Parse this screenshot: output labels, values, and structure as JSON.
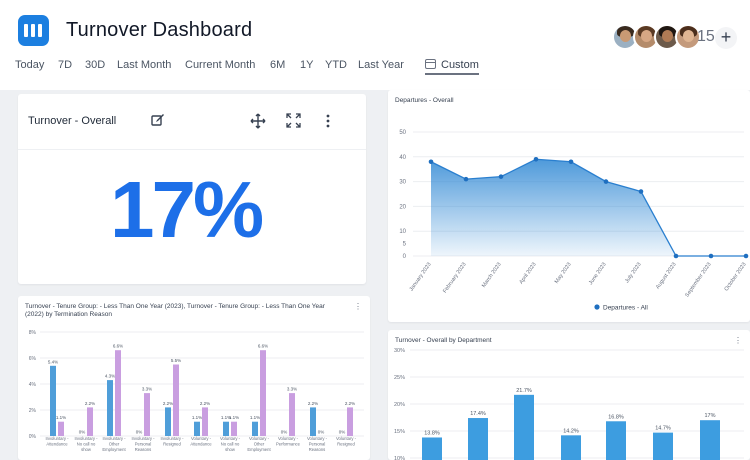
{
  "header": {
    "title": "Turnover Dashboard",
    "extra_count": "15",
    "add_label": "+",
    "logo_color": "#1c7fe0"
  },
  "tabs": [
    {
      "label": "Today"
    },
    {
      "label": "7D"
    },
    {
      "label": "30D"
    },
    {
      "label": "Last Month"
    },
    {
      "label": "Current Month"
    },
    {
      "label": "6M"
    },
    {
      "label": "1Y"
    },
    {
      "label": "YTD"
    },
    {
      "label": "Last Year"
    },
    {
      "label": "Custom",
      "active": true
    }
  ],
  "kpi": {
    "title": "Turnover - Overall",
    "value": "17%",
    "value_color": "#1d6fe8",
    "icons": [
      "edit-icon",
      "move-icon",
      "expand-icon",
      "more-vertical-icon"
    ]
  },
  "departures": {
    "title": "Departures - Overall",
    "chart_data": {
      "type": "area",
      "categories": [
        "January 2023",
        "February 2023",
        "March 2023",
        "April 2023",
        "May 2023",
        "June 2023",
        "July 2023",
        "August 2023",
        "September 2023",
        "October 2023"
      ],
      "series": [
        {
          "name": "Departures - All",
          "values": [
            38,
            31,
            32,
            39,
            38,
            30,
            26,
            0,
            0,
            0
          ]
        }
      ],
      "ylim": [
        0,
        50
      ],
      "yticks": [
        0,
        5,
        10,
        20,
        30,
        40,
        50
      ],
      "color": "#2f88d4",
      "grid": true,
      "legend": "bottom"
    }
  },
  "by_department": {
    "title": "Turnover - Overall by Department",
    "chart_data": {
      "type": "bar",
      "values": [
        13.8,
        17.4,
        21.7,
        14.2,
        16.8,
        14.7,
        17
      ],
      "labels": [
        "13.8%",
        "17.4%",
        "21.7%",
        "14.2%",
        "16.8%",
        "14.7%",
        "17%"
      ],
      "yticks": [
        "10%",
        "15%",
        "20%",
        "25%",
        "30%"
      ],
      "ylim": [
        0,
        30
      ],
      "color": "#3d9de0",
      "grid": true
    }
  },
  "tenure": {
    "title": "Turnover - Tenure Group: - Less Than One Year (2023), Turnover - Tenure Group: - Less Than One Year (2022) by Termination Reason",
    "chart_data": {
      "type": "bar",
      "categories": [
        [
          "Involuntary -",
          "Attendance"
        ],
        [
          "Involuntary -",
          "No call no",
          "show"
        ],
        [
          "Involuntary -",
          "Other",
          "Employment"
        ],
        [
          "Involuntary -",
          "Personal",
          "Reasons"
        ],
        [
          "Involuntary -",
          "Resigned"
        ],
        [
          "Voluntary -",
          "Attendance"
        ],
        [
          "Voluntary -",
          "No call no",
          "show"
        ],
        [
          "Voluntary -",
          "Other",
          "Employment"
        ],
        [
          "Voluntary -",
          "Performance"
        ],
        [
          "Voluntary -",
          "Personal",
          "Reasons"
        ],
        [
          "Voluntary -",
          "Resigned"
        ]
      ],
      "series": [
        {
          "values": [
            5.4,
            0,
            4.3,
            0,
            2.2,
            1.1,
            1.1,
            1.1,
            0,
            2.2,
            0
          ],
          "labels": [
            "5.4%",
            "0%",
            "4.3%",
            "0%",
            "2.2%",
            "1.1%",
            "1.1%",
            "1.1%",
            "0%",
            "2.2%",
            "0%"
          ],
          "color": "#4f9ed9"
        },
        {
          "values": [
            1.1,
            2.2,
            6.6,
            3.3,
            5.5,
            2.2,
            1.1,
            6.6,
            3.3,
            0,
            2.2
          ],
          "labels": [
            "1.1%",
            "2.2%",
            "6.6%",
            "3.3%",
            "5.5%",
            "2.2%",
            "1.1%",
            "6.6%",
            "3.3%",
            "0%",
            "2.2%"
          ],
          "color": "#c99ee0"
        }
      ],
      "ylim": [
        0,
        8
      ],
      "yticks": [
        "0%",
        "2%",
        "4%",
        "6%",
        "8%"
      ],
      "grid": true
    }
  }
}
